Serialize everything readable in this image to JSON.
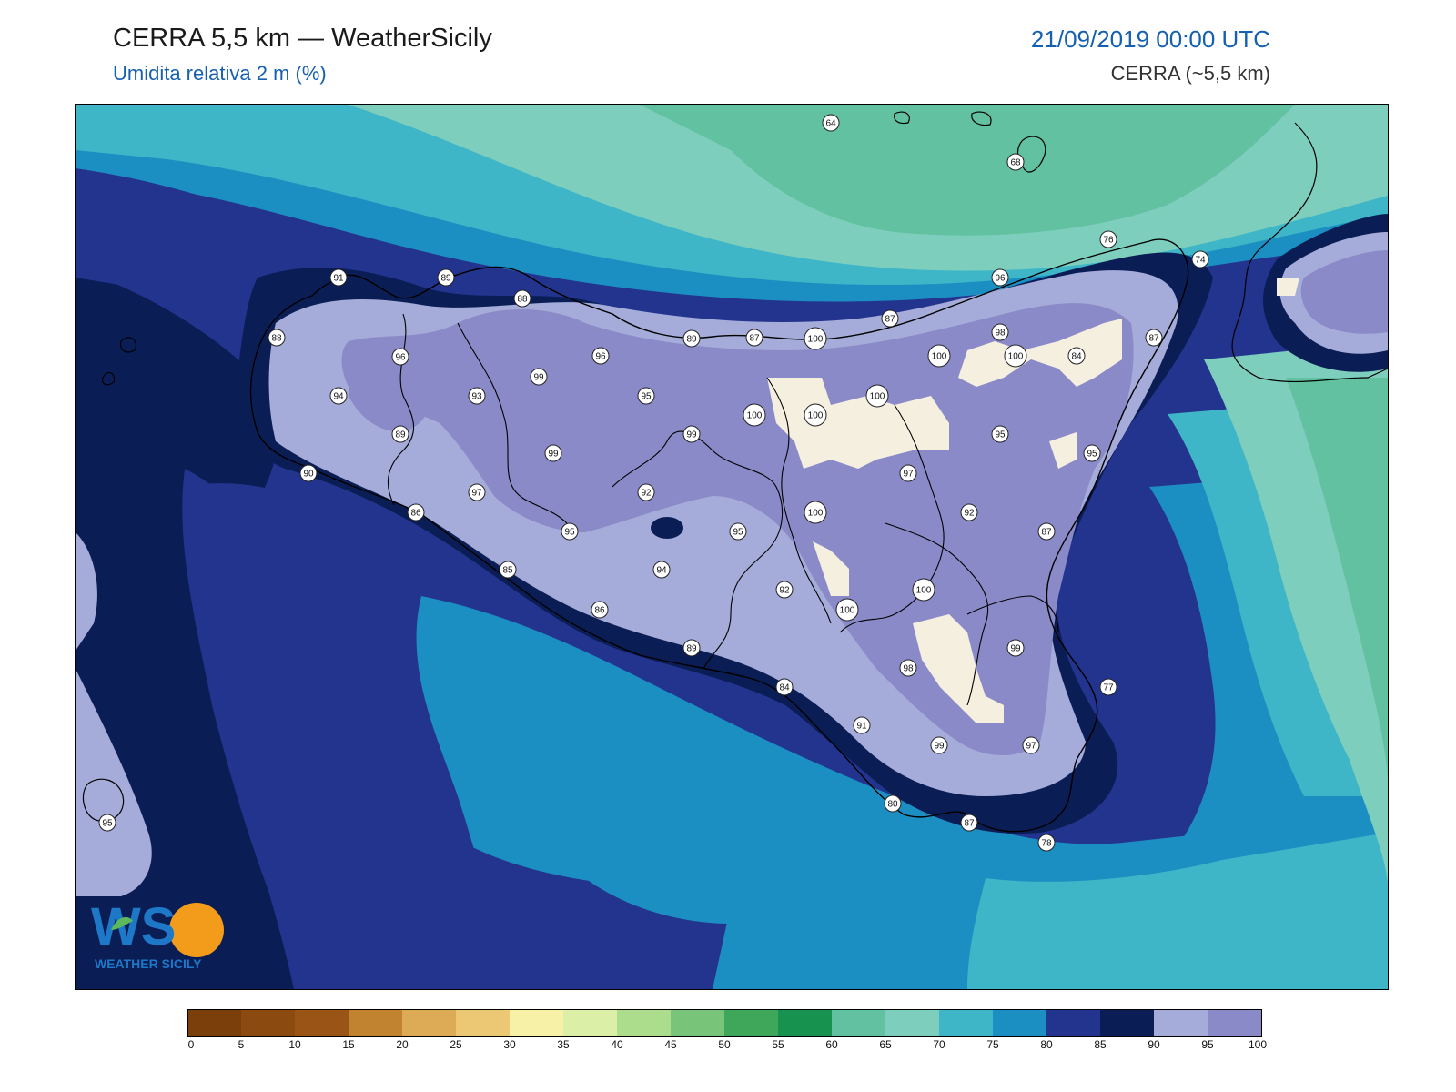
{
  "header": {
    "title": "CERRA 5,5 km — WeatherSicily",
    "subtitle": "Umidita relativa 2 m (%)",
    "datetime": "21/09/2019 00:00 UTC",
    "model": "CERRA (~5,5 km)"
  },
  "logo": {
    "mark": "WS",
    "text": "WEATHER SICILY",
    "colors": {
      "blue": "#1e78c8",
      "orange": "#f39c1c",
      "green": "#5cb85c"
    }
  },
  "stations": [
    {
      "value": "64"
    },
    {
      "value": "68"
    },
    {
      "value": "76"
    },
    {
      "value": "74"
    },
    {
      "value": "91"
    },
    {
      "value": "89"
    },
    {
      "value": "88"
    },
    {
      "value": "96"
    },
    {
      "value": "87"
    },
    {
      "value": "88"
    },
    {
      "value": "96"
    },
    {
      "value": "99"
    },
    {
      "value": "98"
    },
    {
      "value": "89"
    },
    {
      "value": "89"
    },
    {
      "value": "87"
    },
    {
      "value": "100"
    },
    {
      "value": "100"
    },
    {
      "value": "100"
    },
    {
      "value": "84"
    },
    {
      "value": "94"
    },
    {
      "value": "93"
    },
    {
      "value": "95"
    },
    {
      "value": "100"
    },
    {
      "value": "100"
    },
    {
      "value": "100"
    },
    {
      "value": "87"
    },
    {
      "value": "96"
    },
    {
      "value": "99"
    },
    {
      "value": "95"
    },
    {
      "value": "90"
    },
    {
      "value": "99"
    },
    {
      "value": "97"
    },
    {
      "value": "95"
    },
    {
      "value": "97"
    },
    {
      "value": "92"
    },
    {
      "value": "86"
    },
    {
      "value": "100"
    },
    {
      "value": "92"
    },
    {
      "value": "95"
    },
    {
      "value": "95"
    },
    {
      "value": "87"
    },
    {
      "value": "85"
    },
    {
      "value": "94"
    },
    {
      "value": "92"
    },
    {
      "value": "100"
    },
    {
      "value": "100"
    },
    {
      "value": "86"
    },
    {
      "value": "89"
    },
    {
      "value": "99"
    },
    {
      "value": "84"
    },
    {
      "value": "98"
    },
    {
      "value": "77"
    },
    {
      "value": "91"
    },
    {
      "value": "99"
    },
    {
      "value": "97"
    },
    {
      "value": "80"
    },
    {
      "value": "87"
    },
    {
      "value": "78"
    },
    {
      "value": "95"
    }
  ],
  "colorbar": {
    "ticks": [
      "0",
      "5",
      "10",
      "15",
      "20",
      "25",
      "30",
      "35",
      "40",
      "45",
      "50",
      "55",
      "60",
      "65",
      "70",
      "75",
      "80",
      "85",
      "90",
      "95",
      "100"
    ],
    "colors": [
      "#7a3f0a",
      "#8b4a10",
      "#9a5415",
      "#c28330",
      "#ddaa55",
      "#ecc774",
      "#f7f1a8",
      "#dcefa6",
      "#acdd8c",
      "#78c57a",
      "#3ea75a",
      "#18924f",
      "#62c1a1",
      "#7ecebd",
      "#3fb6c7",
      "#1c8fc2",
      "#23348f",
      "#0b1d55",
      "#a5acd9",
      "#8b8ac8"
    ]
  }
}
